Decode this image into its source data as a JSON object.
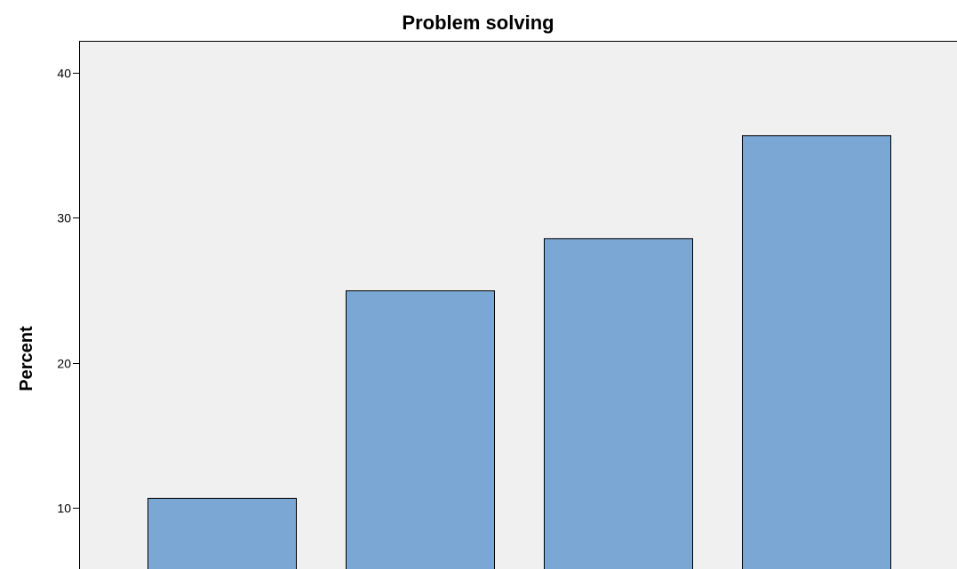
{
  "chart_data": {
    "type": "bar",
    "title": "Problem solving",
    "xlabel": "",
    "ylabel": "Percent",
    "categories": [
      "",
      "",
      "",
      ""
    ],
    "values": [
      10.7,
      25.0,
      28.6,
      35.7
    ],
    "ylim": [
      5.8,
      42.2
    ],
    "yticks": [
      10,
      20,
      30,
      40
    ],
    "grid": false,
    "colors": {
      "bar_fill": "#7ba7d4",
      "bar_stroke": "#000000",
      "plot_background": "#f0f0f0",
      "page_background": "#ffffff"
    }
  }
}
